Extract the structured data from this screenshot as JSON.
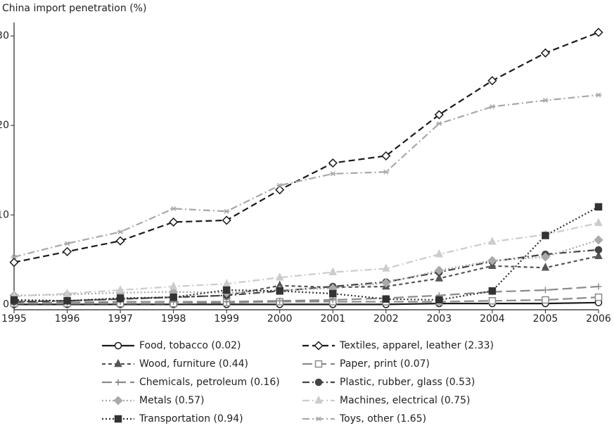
{
  "chart_data": {
    "type": "line",
    "y_label": "China import penetration (%)",
    "x": [
      1995,
      1996,
      1997,
      1998,
      1999,
      2000,
      2001,
      2002,
      2003,
      2004,
      2005,
      2006
    ],
    "xlim": [
      1995,
      2006
    ],
    "xticks": [
      1995,
      1996,
      1997,
      1998,
      1999,
      2000,
      2001,
      2002,
      2003,
      2004,
      2005,
      2006
    ],
    "ylim": [
      -0.6,
      31.5
    ],
    "yticks": [
      0,
      10,
      20,
      30
    ],
    "series": [
      {
        "name": "Food, tobacco (0.02)",
        "color": "#1a1a1a",
        "dash": "solid",
        "marker": "circle-open",
        "values": [
          0.0,
          0.0,
          0.0,
          0.0,
          0.0,
          0.0,
          0.0,
          0.0,
          0.1,
          0.1,
          0.1,
          0.2
        ]
      },
      {
        "name": "Textiles, apparel, leather (2.33)",
        "color": "#1a1a1a",
        "dash": "dashed",
        "marker": "diamond-open",
        "values": [
          4.7,
          5.9,
          7.1,
          9.2,
          9.4,
          12.8,
          15.8,
          16.6,
          21.2,
          25.0,
          28.1,
          30.4
        ]
      },
      {
        "name": "Wood, furniture (0.44)",
        "color": "#555555",
        "dash": "shortdash",
        "marker": "triangle",
        "values": [
          0.3,
          0.4,
          0.6,
          0.8,
          1.0,
          2.1,
          1.9,
          2.0,
          2.9,
          4.3,
          4.1,
          5.4
        ]
      },
      {
        "name": "Paper, print (0.07)",
        "color": "#8a8a8a",
        "dash": "longdash",
        "marker": "square-open",
        "values": [
          0.1,
          0.1,
          0.1,
          0.1,
          0.2,
          0.3,
          0.3,
          0.3,
          0.3,
          0.4,
          0.5,
          0.8
        ]
      },
      {
        "name": "Chemicals, petroleum (0.16)",
        "color": "#8a8a8a",
        "dash": "longdash",
        "marker": "plus",
        "values": [
          0.2,
          0.2,
          0.3,
          0.3,
          0.3,
          0.4,
          0.5,
          0.7,
          1.0,
          1.4,
          1.6,
          2.0
        ]
      },
      {
        "name": "Plastic, rubber, glass (0.53)",
        "color": "#444444",
        "dash": "dashdot",
        "marker": "circle",
        "values": [
          0.3,
          0.4,
          0.6,
          0.8,
          1.0,
          1.5,
          2.0,
          2.5,
          3.6,
          4.8,
          5.6,
          6.1
        ]
      },
      {
        "name": "Metals (0.57)",
        "color": "#aaaaaa",
        "dash": "dotted",
        "marker": "diamond",
        "values": [
          1.0,
          1.1,
          1.3,
          1.4,
          1.3,
          1.6,
          1.8,
          2.4,
          3.8,
          4.9,
          5.3,
          7.2
        ]
      },
      {
        "name": "Machines, electrical (0.75)",
        "color": "#cccccc",
        "dash": "dashdot",
        "marker": "triangle",
        "values": [
          0.9,
          1.2,
          1.6,
          2.0,
          2.3,
          3.0,
          3.6,
          4.0,
          5.6,
          7.0,
          7.8,
          9.1
        ]
      },
      {
        "name": "Transportation (0.94)",
        "color": "#333333",
        "dash": "dotted",
        "marker": "square",
        "values": [
          0.5,
          0.4,
          0.7,
          0.8,
          1.6,
          1.5,
          1.2,
          0.6,
          0.5,
          1.5,
          7.7,
          10.9
        ]
      },
      {
        "name": "Toys, other (1.65)",
        "color": "#a8a8a8",
        "dash": "dashdot",
        "marker": "asterisk",
        "values": [
          5.3,
          6.8,
          8.1,
          10.7,
          10.4,
          13.3,
          14.6,
          14.8,
          20.2,
          22.1,
          22.8,
          23.4
        ]
      }
    ]
  }
}
